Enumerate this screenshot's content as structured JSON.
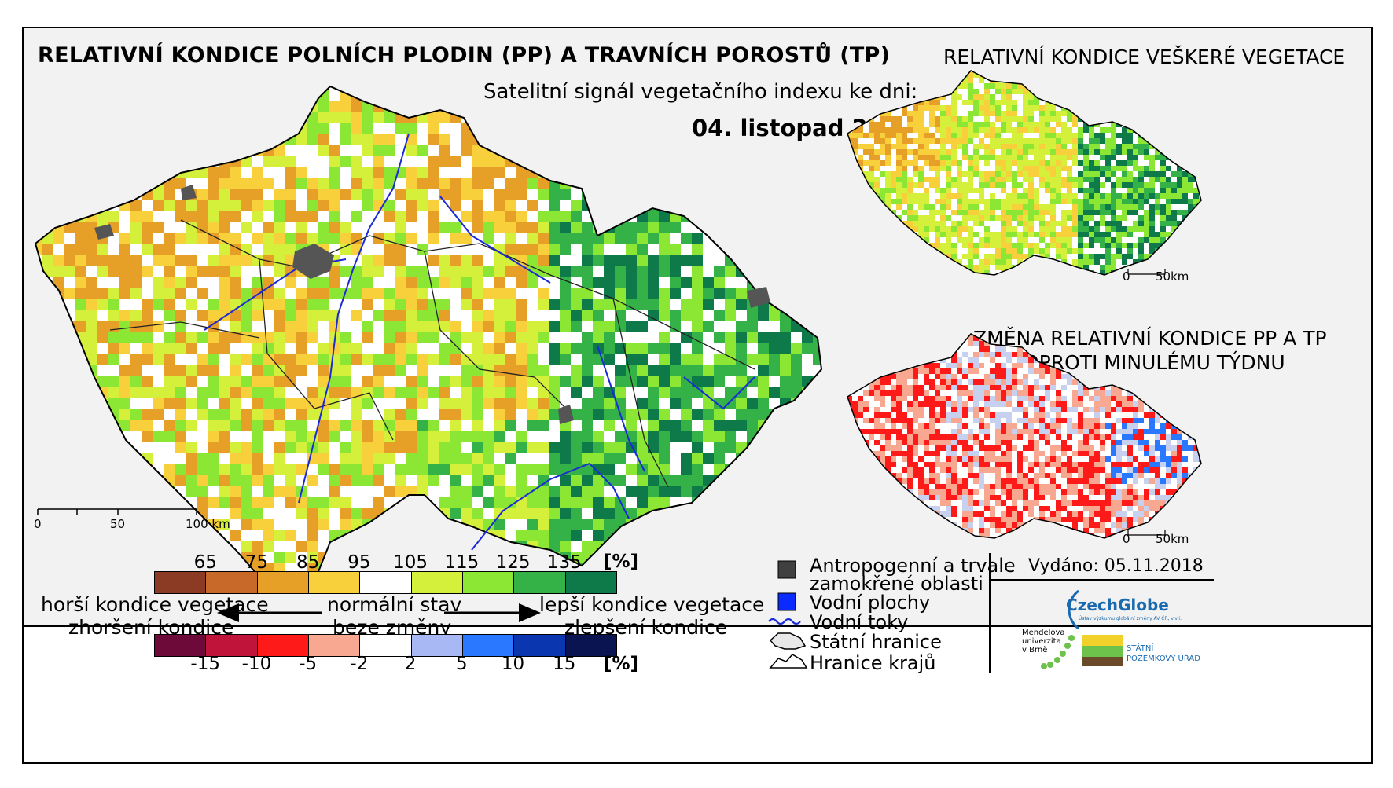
{
  "main_title": "RELATIVNÍ KONDICE POLNÍCH PLODIN (PP) A TRAVNÍCH POROSTŮ (TP)",
  "subtitle": "Satelitní signál vegetačního indexu ke dni:",
  "date": "04. listopad 2018",
  "scale_main": {
    "zero": "0",
    "mid": "50",
    "end": "100 km"
  },
  "side_top_title": "RELATIVNÍ KONDICE VEŠKERÉ VEGETACE",
  "side_bottom_title_line1": "ZMĚNA RELATIVNÍ KONDICE PP A TP",
  "side_bottom_title_line2": "OPROTI MINULÉMU TÝDNU",
  "scale_small": {
    "zero": "0",
    "end": "50km"
  },
  "condition_legend": {
    "ticks": [
      "65",
      "75",
      "85",
      "95",
      "105",
      "115",
      "125",
      "135"
    ],
    "unit": "[%]",
    "colors": [
      "#8b3a24",
      "#c8692a",
      "#e6a028",
      "#f8d03c",
      "#ffffff",
      "#d4f03a",
      "#8ce634",
      "#34b248",
      "#0e7a4a"
    ]
  },
  "change_legend": {
    "ticks": [
      "-15",
      "-10",
      "-5",
      "-2",
      "2",
      "5",
      "10",
      "15"
    ],
    "unit": "[%]",
    "colors": [
      "#6e0a3a",
      "#c0143a",
      "#ff1a1a",
      "#f8a890",
      "#ffffff",
      "#a8b8f4",
      "#2a78ff",
      "#0a36b0",
      "#0a1450"
    ]
  },
  "legend_text": {
    "worse_1": "horší kondice vegetace",
    "worse_2": "zhoršení kondice",
    "normal_1": "normální stav",
    "normal_2": "beze změny",
    "better_1": "lepší kondice vegetace",
    "better_2": "zlepšení kondice"
  },
  "symbols": {
    "anthropogenic_1": "Antropogenní a trvale",
    "anthropogenic_2": "zamokřené oblasti",
    "water": "Vodní plochy",
    "rivers": "Vodní toky",
    "state_border": "Státní hranice",
    "region_border": "Hranice krajů"
  },
  "issued": "Vydáno: 05.11.2018",
  "logos": {
    "czechglobe": "CzechGlobe",
    "czechglobe_sub": "Ústav výzkumu globální změny AV ČR, v.v.i.",
    "mendel": "Mendelova univerzita v Brně",
    "spu_1": "STÁTNÍ",
    "spu_2": "POZEMKOVÝ ÚŘAD"
  },
  "map_colors": {
    "orange": "#e6a028",
    "yellow": "#f8d03c",
    "lightgreen": "#d4f03a",
    "green": "#8ce634",
    "midgreen": "#34b248",
    "darkgreen": "#0e7a4a",
    "red": "#ff1a1a",
    "pink": "#f8a890",
    "blue": "#2a78ff",
    "urban": "#555555",
    "river": "#1a2ad6"
  }
}
